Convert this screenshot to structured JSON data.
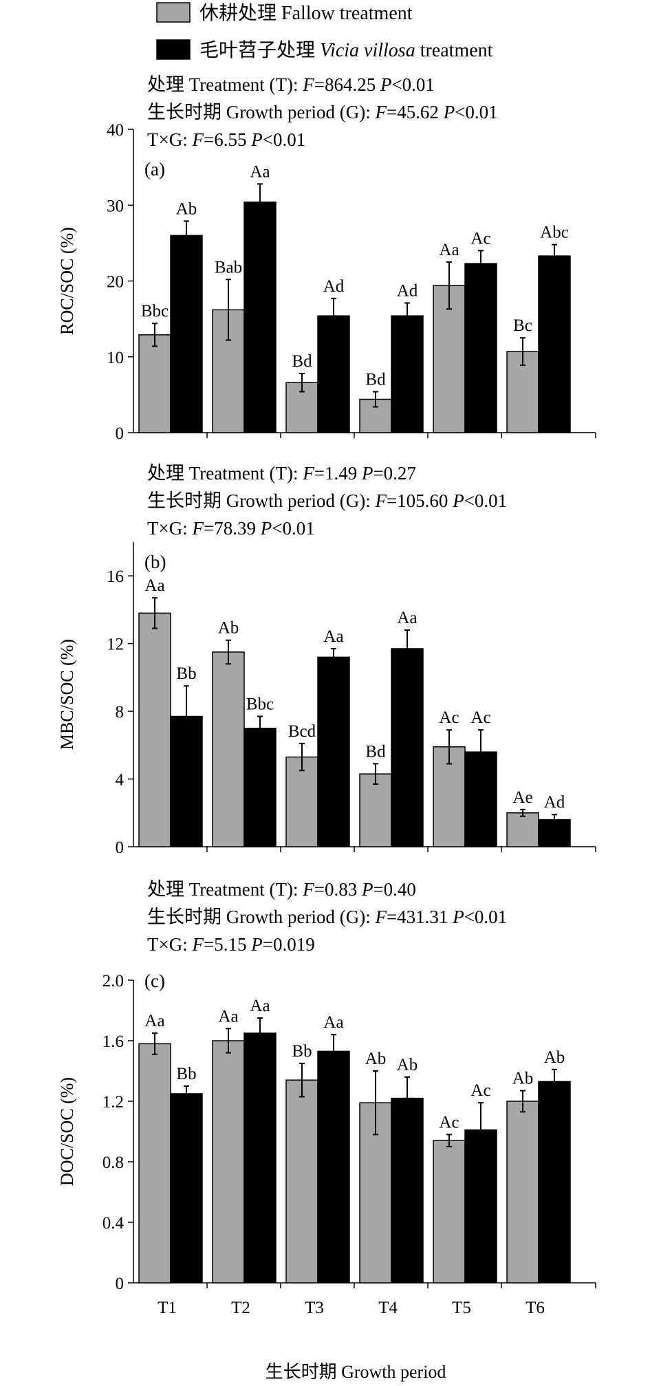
{
  "legend": [
    {
      "zh": "休耕处理",
      "en": "Fallow treatment",
      "en_italic": "",
      "color": "#a6a6a6"
    },
    {
      "zh": "毛叶苕子处理",
      "en": "treatment",
      "en_italic": "Vicia villosa",
      "color": "#000000"
    }
  ],
  "x_axis_label": "生长时期 Growth period",
  "chart_data": [
    {
      "type": "bar",
      "panel": "(a)",
      "ylabel": "ROC/SOC (%)",
      "categories": [
        "T1",
        "T2",
        "T3",
        "T4",
        "T5",
        "T6"
      ],
      "ylim": [
        0,
        40
      ],
      "yticks": [
        0,
        10,
        20,
        30,
        40
      ],
      "stats": [
        {
          "prefix": "处理 Treatment (T): ",
          "F": "864.25",
          "P": "<0.01"
        },
        {
          "prefix": "生长时期 Growth period (G): ",
          "F": "45.62",
          "P": "<0.01"
        },
        {
          "prefix": "T×G: ",
          "F": "6.55",
          "P": "<0.01"
        }
      ],
      "series": [
        {
          "name": "休耕处理 Fallow treatment",
          "color": "#a6a6a6",
          "values": [
            12.9,
            16.2,
            6.6,
            4.4,
            19.4,
            10.7
          ],
          "errors": [
            1.5,
            4.0,
            1.2,
            1.0,
            3.1,
            1.8
          ],
          "letters": [
            "Bbc",
            "Bab",
            "Bd",
            "Bd",
            "Aa",
            "Bc"
          ]
        },
        {
          "name": "毛叶苕子处理 Vicia villosa treatment",
          "color": "#000000",
          "values": [
            26.0,
            30.4,
            15.4,
            15.4,
            22.3,
            23.3
          ],
          "errors": [
            1.9,
            2.4,
            2.3,
            1.7,
            1.7,
            1.5
          ],
          "letters": [
            "Ab",
            "Aa",
            "Ad",
            "Ad",
            "Ac",
            "Abc"
          ]
        }
      ]
    },
    {
      "type": "bar",
      "panel": "(b)",
      "ylabel": "MBC/SOC (%)",
      "categories": [
        "T1",
        "T2",
        "T3",
        "T4",
        "T5",
        "T6"
      ],
      "ylim": [
        0,
        18
      ],
      "yticks": [
        0,
        4,
        8,
        12,
        16
      ],
      "stats": [
        {
          "prefix": "处理 Treatment (T): ",
          "F": "1.49",
          "P": "=0.27"
        },
        {
          "prefix": "生长时期 Growth period (G): ",
          "F": "105.60",
          "P": "<0.01"
        },
        {
          "prefix": "T×G: ",
          "F": "78.39",
          "P": "<0.01"
        }
      ],
      "series": [
        {
          "name": "休耕处理 Fallow treatment",
          "color": "#a6a6a6",
          "values": [
            13.8,
            11.5,
            5.3,
            4.3,
            5.9,
            2.0
          ],
          "errors": [
            0.9,
            0.7,
            0.8,
            0.6,
            1.0,
            0.2
          ],
          "letters": [
            "Aa",
            "Ab",
            "Bcd",
            "Bd",
            "Ac",
            "Ae"
          ]
        },
        {
          "name": "毛叶苕子处理 Vicia villosa treatment",
          "color": "#000000",
          "values": [
            7.7,
            7.0,
            11.2,
            11.7,
            5.6,
            1.6
          ],
          "errors": [
            1.8,
            0.7,
            0.5,
            1.1,
            1.3,
            0.3
          ],
          "letters": [
            "Bb",
            "Bbc",
            "Aa",
            "Aa",
            "Ac",
            "Ad"
          ]
        }
      ]
    },
    {
      "type": "bar",
      "panel": "(c)",
      "ylabel": "DOC/SOC (%)",
      "categories": [
        "T1",
        "T2",
        "T3",
        "T4",
        "T5",
        "T6"
      ],
      "ylim": [
        0,
        2.0
      ],
      "yticks": [
        0,
        0.4,
        0.8,
        1.2,
        1.6,
        2.0
      ],
      "ytick_labels": [
        "0",
        "0.4",
        "0.8",
        "1.2",
        "1.6",
        "2.0"
      ],
      "stats": [
        {
          "prefix": "处理 Treatment (T): ",
          "F": "0.83",
          "P": "=0.40"
        },
        {
          "prefix": "生长时期 Growth period (G): ",
          "F": "431.31",
          "P": "<0.01"
        },
        {
          "prefix": "T×G: ",
          "F": "5.15",
          "P": "=0.019"
        }
      ],
      "series": [
        {
          "name": "休耕处理 Fallow treatment",
          "color": "#a6a6a6",
          "values": [
            1.58,
            1.6,
            1.34,
            1.19,
            0.94,
            1.2
          ],
          "errors": [
            0.07,
            0.08,
            0.11,
            0.21,
            0.04,
            0.07
          ],
          "letters": [
            "Aa",
            "Aa",
            "Bb",
            "Ab",
            "Ac",
            "Ab"
          ]
        },
        {
          "name": "毛叶苕子处理 Vicia villosa treatment",
          "color": "#000000",
          "values": [
            1.25,
            1.65,
            1.53,
            1.22,
            1.01,
            1.33
          ],
          "errors": [
            0.05,
            0.1,
            0.11,
            0.14,
            0.18,
            0.08
          ],
          "letters": [
            "Bb",
            "Aa",
            "Aa",
            "Ab",
            "Ac",
            "Ab"
          ]
        }
      ]
    }
  ]
}
